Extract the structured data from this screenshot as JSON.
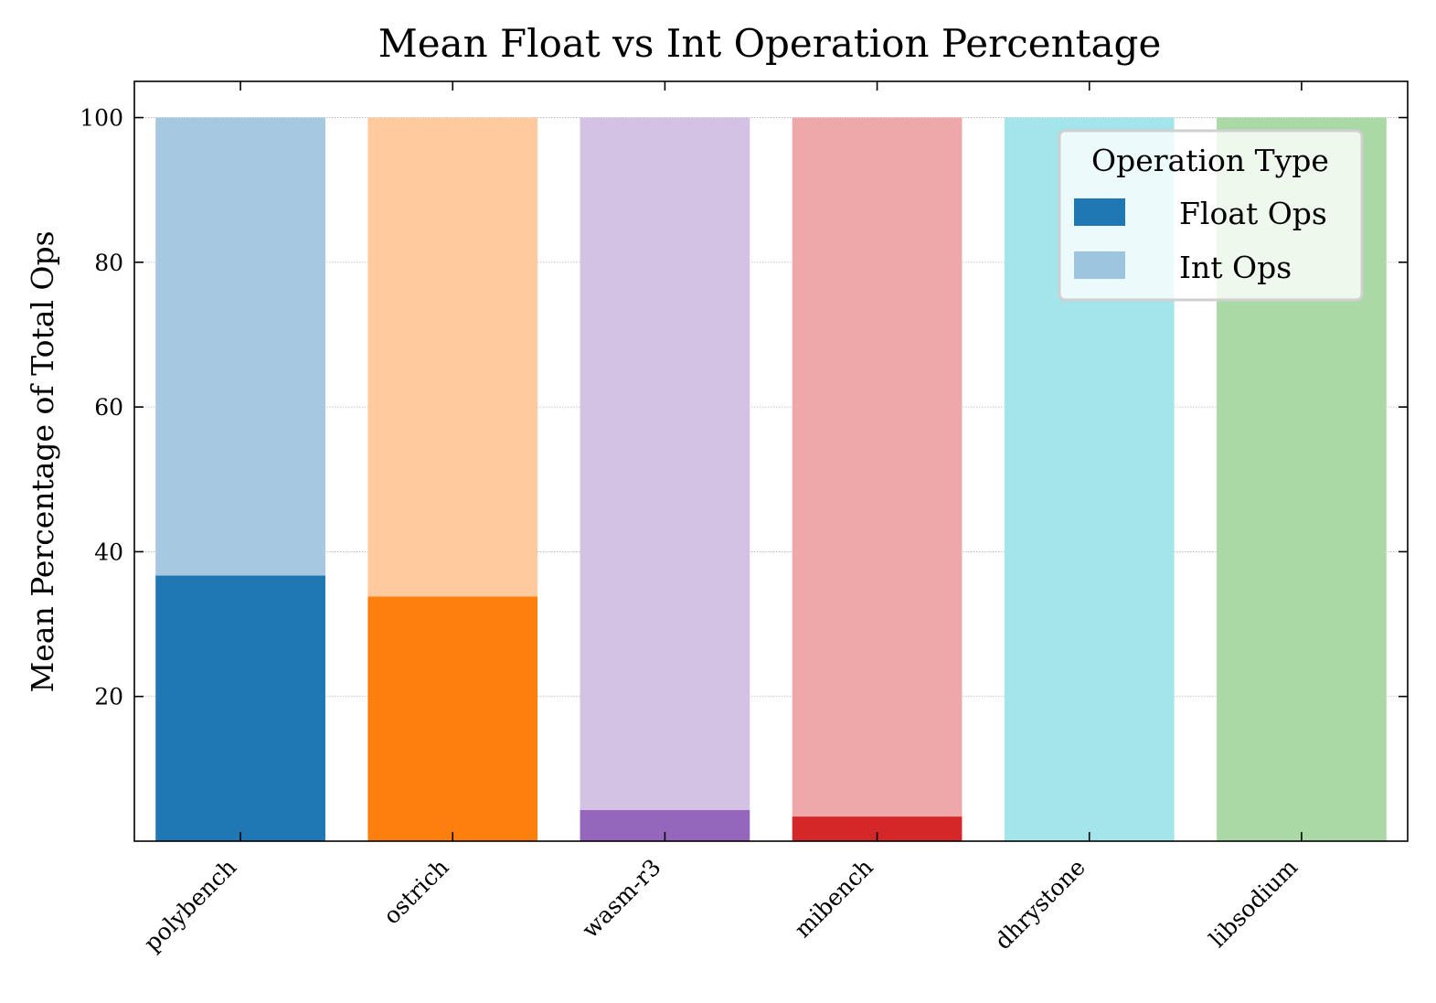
{
  "chart_data": {
    "type": "bar",
    "stacked": true,
    "title": "Mean Float vs Int Operation Percentage",
    "xlabel": "",
    "ylabel": "Mean Percentage of Total Ops",
    "categories": [
      "polybench",
      "ostrich",
      "wasm-r3",
      "mibench",
      "dhrystone",
      "libsodium"
    ],
    "series": [
      {
        "name": "Float Ops",
        "values": [
          36.7,
          33.8,
          4.3,
          3.4,
          0.0,
          0.0
        ]
      },
      {
        "name": "Int Ops",
        "values": [
          63.3,
          66.2,
          95.7,
          96.6,
          100.0,
          100.0
        ]
      }
    ],
    "float_colors": [
      "#1f77b4",
      "#ff7f0e",
      "#9467bd",
      "#d62728",
      "#17becf",
      "#2ca02c"
    ],
    "int_colors": [
      "#a6c8e0",
      "#ffcb9e",
      "#d3c2e3",
      "#eea8aa",
      "#a3e5eb",
      "#aad9a6"
    ],
    "ylim": [
      0,
      105
    ],
    "yticks": [
      20,
      40,
      60,
      80,
      100
    ],
    "ytick_labels": [
      "20",
      "40",
      "60",
      "80",
      "100"
    ],
    "grid": true,
    "legend": {
      "title": "Operation Type",
      "placement": "top-right",
      "entries": [
        {
          "label": "Float Ops",
          "color": "#1f77b4"
        },
        {
          "label": "Int Ops",
          "color": "#9ec5e0"
        }
      ]
    }
  }
}
